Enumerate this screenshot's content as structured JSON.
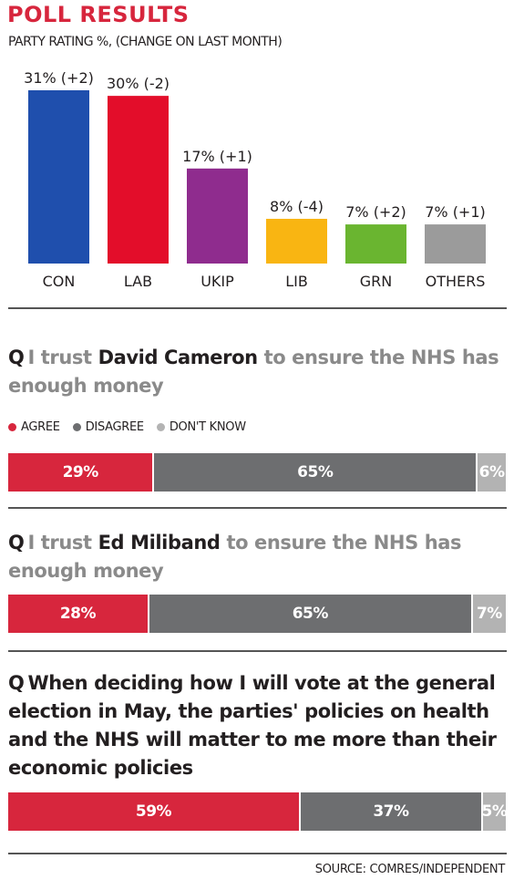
{
  "header": {
    "title": "POLL RESULTS",
    "subtitle": "PARTY RATING %, (CHANGE ON LAST MONTH)"
  },
  "colors": {
    "accent": "#d7263d",
    "agree": "#d7263d",
    "disagree": "#6d6e70",
    "dont_know": "#b3b3b3"
  },
  "chart_data": [
    {
      "type": "bar",
      "title": "PARTY RATING %, (CHANGE ON LAST MONTH)",
      "categories": [
        "CON",
        "LAB",
        "UKIP",
        "LIB",
        "GRN",
        "OTHERS"
      ],
      "values": [
        31,
        30,
        17,
        8,
        7,
        7
      ],
      "changes": [
        2,
        -2,
        1,
        -4,
        2,
        1
      ],
      "data_labels": [
        "31% (+2)",
        "30% (-2)",
        "17% (+1)",
        "8% (-4)",
        "7% (+2)",
        "7% (+1)"
      ],
      "colors": [
        "#1f4fad",
        "#e30d2a",
        "#8f2c8e",
        "#f9b512",
        "#6ab530",
        "#9b9b9b"
      ],
      "ylim": [
        0,
        31
      ],
      "grid": false
    },
    {
      "type": "bar",
      "subtype": "stacked-horizontal",
      "categories": [
        "AGREE",
        "DISAGREE",
        "DON'T KNOW"
      ],
      "series": [
        {
          "values": [
            29,
            65,
            6
          ],
          "labels": [
            "29%",
            "65%",
            "6%"
          ]
        },
        {
          "values": [
            28,
            65,
            7
          ],
          "labels": [
            "28%",
            "65%",
            "7%"
          ]
        },
        {
          "values": [
            59,
            37,
            5
          ],
          "labels": [
            "59%",
            "37%",
            "5%"
          ]
        }
      ]
    }
  ],
  "questions": [
    {
      "q": "Q",
      "pre": "I trust ",
      "name": "David Cameron",
      "post": " to ensure the NHS has enough money",
      "segments": [
        {
          "label": "29%",
          "value": 29,
          "kind": "agree"
        },
        {
          "label": "65%",
          "value": 65,
          "kind": "disagree"
        },
        {
          "label": "6%",
          "value": 6,
          "kind": "dont_know"
        }
      ]
    },
    {
      "q": "Q",
      "pre": "I trust ",
      "name": "Ed Miliband",
      "post": " to ensure the NHS has enough money",
      "segments": [
        {
          "label": "28%",
          "value": 28,
          "kind": "agree"
        },
        {
          "label": "65%",
          "value": 65,
          "kind": "disagree"
        },
        {
          "label": "7%",
          "value": 7,
          "kind": "dont_know"
        }
      ]
    },
    {
      "q": "Q",
      "text": "When deciding how I will vote at the general election in May, the parties' policies on health and the NHS will matter to me more than their economic policies",
      "segments": [
        {
          "label": "59%",
          "value": 59,
          "kind": "agree"
        },
        {
          "label": "37%",
          "value": 37,
          "kind": "disagree"
        },
        {
          "label": "5%",
          "value": 5,
          "kind": "dont_know"
        }
      ]
    }
  ],
  "legend": {
    "agree": "AGREE",
    "disagree": "DISAGREE",
    "dont_know": "DON'T KNOW"
  },
  "footer": {
    "source": "SOURCE: COMRES/INDEPENDENT"
  }
}
